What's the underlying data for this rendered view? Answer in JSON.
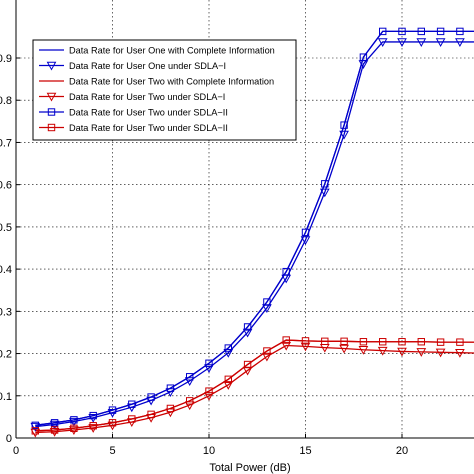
{
  "chart_data": {
    "type": "line",
    "xlabel": "Total Power (dB)",
    "ylabel": "",
    "title": "",
    "xlim": [
      0,
      24
    ],
    "ylim": [
      0,
      1
    ],
    "x_ticks": [
      0,
      5,
      10,
      15,
      20
    ],
    "y_ticks": [
      0,
      0.1,
      0.2,
      0.3,
      0.4,
      0.5,
      0.6,
      0.7,
      0.8,
      0.9
    ],
    "y_tick_labels": [
      "0",
      "0.1",
      "0.2",
      "0.3",
      "0.4",
      "0.5",
      "0.6",
      "0.7",
      "0.8",
      "0.9"
    ],
    "grid": true,
    "legend_position": "top-left",
    "x": [
      1,
      2,
      3,
      4,
      5,
      6,
      7,
      8,
      9,
      10,
      11,
      12,
      13,
      14,
      15,
      16,
      17,
      18,
      19,
      20,
      21,
      22,
      23,
      24
    ],
    "series": [
      {
        "name": "Data Rate for User One with Complete Information",
        "color": "#0000cc",
        "marker": "none",
        "values": [
          0.03,
          0.036,
          0.043,
          0.053,
          0.066,
          0.08,
          0.097,
          0.118,
          0.145,
          0.177,
          0.213,
          0.263,
          0.322,
          0.394,
          0.487,
          0.602,
          0.741,
          0.902,
          0.963,
          0.963,
          0.963,
          0.963,
          0.963,
          0.963
        ]
      },
      {
        "name": "Data Rate for User One under SDLA−I",
        "color": "#0000cc",
        "marker": "triangle-down",
        "values": [
          0.027,
          0.032,
          0.039,
          0.048,
          0.06,
          0.073,
          0.089,
          0.109,
          0.135,
          0.166,
          0.202,
          0.25,
          0.308,
          0.378,
          0.469,
          0.582,
          0.719,
          0.886,
          0.938,
          0.938,
          0.938,
          0.938,
          0.938,
          0.938
        ]
      },
      {
        "name": "Data Rate for User Two with Complete Information",
        "color": "#cc0000",
        "marker": "none",
        "values": [
          0.017,
          0.019,
          0.023,
          0.029,
          0.036,
          0.045,
          0.056,
          0.07,
          0.088,
          0.111,
          0.139,
          0.174,
          0.206,
          0.232,
          0.23,
          0.229,
          0.229,
          0.228,
          0.228,
          0.228,
          0.228,
          0.227,
          0.227,
          0.227
        ]
      },
      {
        "name": "Data Rate for User Two under SDLA−I",
        "color": "#cc0000",
        "marker": "triangle-down",
        "values": [
          0.013,
          0.015,
          0.019,
          0.024,
          0.03,
          0.038,
          0.048,
          0.061,
          0.078,
          0.1,
          0.126,
          0.16,
          0.193,
          0.219,
          0.217,
          0.214,
          0.212,
          0.209,
          0.207,
          0.205,
          0.204,
          0.203,
          0.202,
          0.201
        ]
      },
      {
        "name": "Data Rate for User Two under SDLA−II",
        "color": "#0000cc",
        "marker": "square",
        "values": [
          0.03,
          0.036,
          0.043,
          0.053,
          0.066,
          0.08,
          0.097,
          0.118,
          0.145,
          0.177,
          0.213,
          0.263,
          0.322,
          0.394,
          0.487,
          0.602,
          0.741,
          0.902,
          0.963,
          0.963,
          0.963,
          0.963,
          0.963,
          0.963
        ]
      },
      {
        "name": "Data Rate for User Two under SDLA−II",
        "color": "#cc0000",
        "marker": "square",
        "values": [
          0.017,
          0.019,
          0.023,
          0.029,
          0.036,
          0.045,
          0.056,
          0.07,
          0.088,
          0.111,
          0.139,
          0.174,
          0.206,
          0.232,
          0.23,
          0.229,
          0.229,
          0.228,
          0.228,
          0.228,
          0.228,
          0.227,
          0.227,
          0.227
        ]
      }
    ]
  }
}
